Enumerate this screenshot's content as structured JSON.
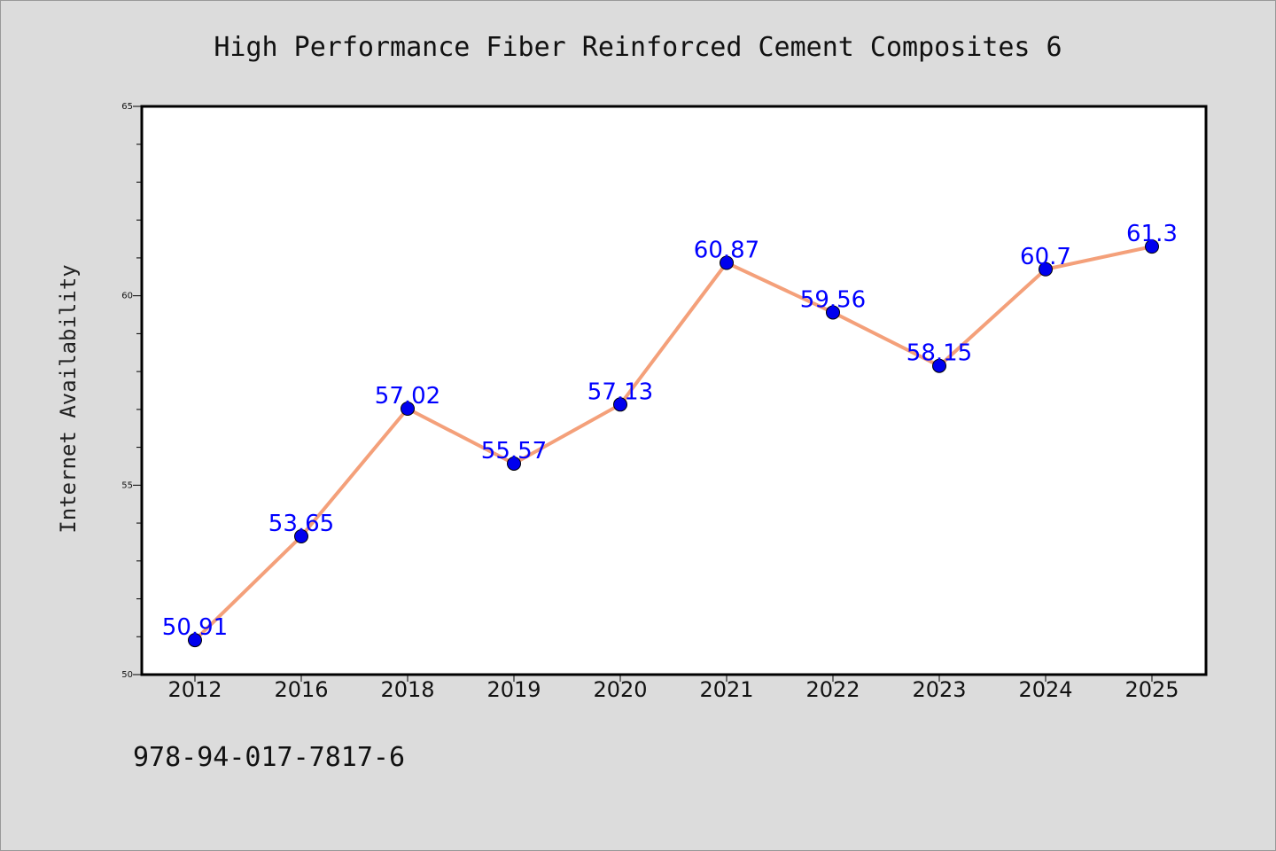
{
  "chart_data": {
    "type": "line",
    "title": "High Performance Fiber Reinforced Cement Composites 6",
    "xlabel": "",
    "ylabel": "Internet Availability",
    "categories": [
      "2012",
      "2016",
      "2018",
      "2019",
      "2020",
      "2021",
      "2022",
      "2023",
      "2024",
      "2025"
    ],
    "series": [
      {
        "values": [
          50.91,
          53.65,
          57.02,
          55.57,
          57.13,
          60.87,
          59.56,
          58.15,
          60.7,
          61.3
        ],
        "labels": [
          "50.91",
          "53.65",
          "57.02",
          "55.57",
          "57.13",
          "60.87",
          "59.56",
          "58.15",
          "60.7",
          "61.3"
        ],
        "line_color": "#f4a07a",
        "marker_color": "#0000ee",
        "label_color": "#0000ff"
      }
    ],
    "ylim": [
      50,
      65
    ],
    "yticks": [
      "50",
      "55",
      "60",
      "65"
    ],
    "grid": false,
    "legend": "none"
  },
  "footer": {
    "isbn": "978-94-017-7817-6"
  }
}
